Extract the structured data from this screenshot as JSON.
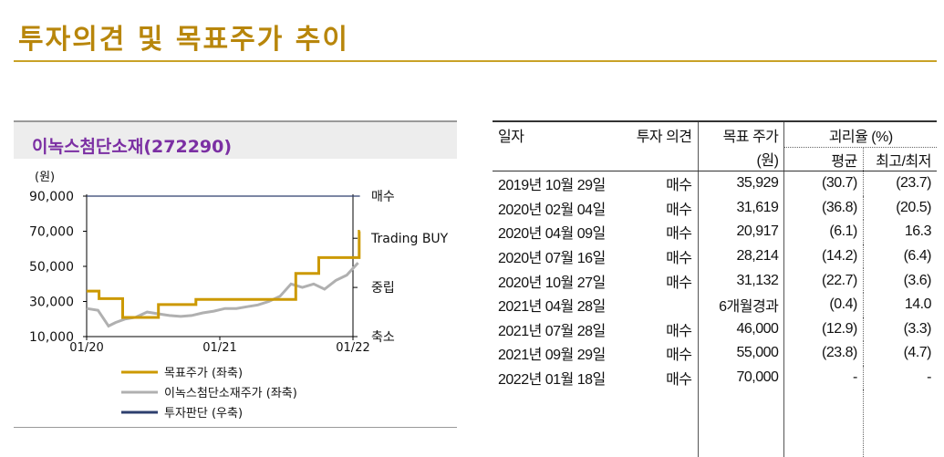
{
  "page": {
    "title": "투자의견 및 목표주가 추이"
  },
  "chart": {
    "company": "이녹스첨단소재(272290)"
  },
  "chart_data": {
    "type": "line",
    "title": "이녹스첨단소재(272290)",
    "ylabel": "(원)",
    "ylim": [
      10000,
      90000
    ],
    "yticks": [
      "90,000",
      "70,000",
      "50,000",
      "30,000",
      "10,000"
    ],
    "xticks": [
      "01/20",
      "01/21",
      "01/22"
    ],
    "x_range": [
      "2020-01",
      "2022-01"
    ],
    "right_axis": [
      "매수",
      "Trading BUY",
      "중립",
      "축소"
    ],
    "legend_placement": "bottom-left",
    "grid": false,
    "series": [
      {
        "name": "목표주가 (좌축)",
        "color": "#cc9900",
        "step": true,
        "points": [
          [
            "2020-01-01",
            35929
          ],
          [
            "2020-02-04",
            31619
          ],
          [
            "2020-04-09",
            20917
          ],
          [
            "2020-07-16",
            28214
          ],
          [
            "2020-10-27",
            31132
          ],
          [
            "2021-07-28",
            46000
          ],
          [
            "2021-09-29",
            55000
          ],
          [
            "2022-01-18",
            70000
          ],
          [
            "2022-01-20",
            70000
          ]
        ]
      },
      {
        "name": "이녹스첨단소재주가 (좌축)",
        "color": "#b0b0b0",
        "points": [
          [
            "2020-01-01",
            26000
          ],
          [
            "2020-02-01",
            25000
          ],
          [
            "2020-03-01",
            16000
          ],
          [
            "2020-03-20",
            18000
          ],
          [
            "2020-04-15",
            20000
          ],
          [
            "2020-05-15",
            21000
          ],
          [
            "2020-06-15",
            24000
          ],
          [
            "2020-07-15",
            23000
          ],
          [
            "2020-08-15",
            22000
          ],
          [
            "2020-09-15",
            21500
          ],
          [
            "2020-10-15",
            22000
          ],
          [
            "2020-11-15",
            23500
          ],
          [
            "2020-12-15",
            24500
          ],
          [
            "2021-01-15",
            26000
          ],
          [
            "2021-02-15",
            26000
          ],
          [
            "2021-03-15",
            27000
          ],
          [
            "2021-04-15",
            28000
          ],
          [
            "2021-05-15",
            30000
          ],
          [
            "2021-06-15",
            33000
          ],
          [
            "2021-07-15",
            40000
          ],
          [
            "2021-08-15",
            38000
          ],
          [
            "2021-09-15",
            40000
          ],
          [
            "2021-10-15",
            37000
          ],
          [
            "2021-11-15",
            42000
          ],
          [
            "2021-12-15",
            45000
          ],
          [
            "2022-01-15",
            52000
          ]
        ]
      },
      {
        "name": "투자판단 (우축)",
        "color": "#2e3f6e",
        "points": [
          [
            "2020-01-01",
            90000
          ],
          [
            "2022-01-20",
            90000
          ]
        ]
      }
    ]
  },
  "table": {
    "headers": {
      "date": "일자",
      "opinion": "투자 의견",
      "target": "목표 주가",
      "target_unit": "(원)",
      "gap": "괴리율 (%)",
      "avg": "평균",
      "maxmin": "최고/최저"
    },
    "rows": [
      {
        "date": "2019년 10월 29일",
        "opinion": "매수",
        "price": "35,929",
        "avg": "(30.7)",
        "maxmin": "(23.7)"
      },
      {
        "date": "2020년 02월 04일",
        "opinion": "매수",
        "price": "31,619",
        "avg": "(36.8)",
        "maxmin": "(20.5)"
      },
      {
        "date": "2020년 04월 09일",
        "opinion": "매수",
        "price": "20,917",
        "avg": "(6.1)",
        "maxmin": "16.3"
      },
      {
        "date": "2020년 07월 16일",
        "opinion": "매수",
        "price": "28,214",
        "avg": "(14.2)",
        "maxmin": "(6.4)"
      },
      {
        "date": "2020년 10월 27일",
        "opinion": "매수",
        "price": "31,132",
        "avg": "(22.7)",
        "maxmin": "(3.6)"
      },
      {
        "date": "2021년 04월 28일",
        "opinion": "",
        "price": "6개월경과",
        "avg": "(0.4)",
        "maxmin": "14.0"
      },
      {
        "date": "2021년 07월 28일",
        "opinion": "매수",
        "price": "46,000",
        "avg": "(12.9)",
        "maxmin": "(3.3)"
      },
      {
        "date": "2021년 09월 29일",
        "opinion": "매수",
        "price": "55,000",
        "avg": "(23.8)",
        "maxmin": "(4.7)"
      },
      {
        "date": "2022년 01월 18일",
        "opinion": "매수",
        "price": "70,000",
        "avg": "-",
        "maxmin": "-"
      }
    ]
  }
}
